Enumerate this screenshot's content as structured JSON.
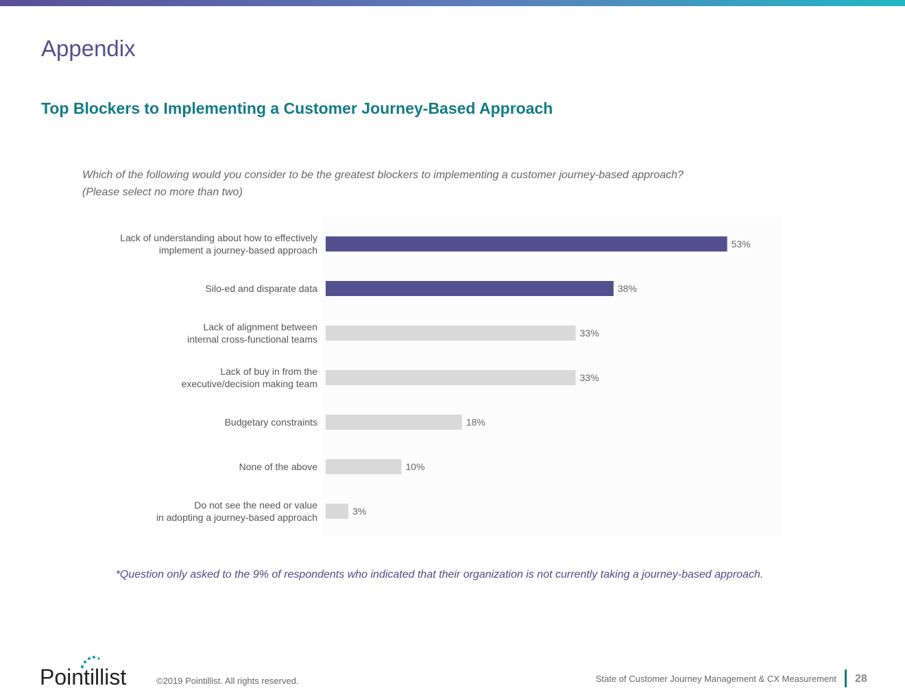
{
  "page": {
    "title": "Appendix",
    "section_title": "Top Blockers to Implementing a Customer Journey-Based Approach",
    "question_lines": [
      "Which of the following would you consider to be the greatest blockers to implementing a customer journey-based approach?",
      "(Please select no more than two)"
    ],
    "footnote": "*Question only asked to the 9% of respondents who indicated that their organization is not  currently taking a journey-based approach."
  },
  "chart_data": {
    "type": "bar",
    "orientation": "horizontal",
    "categories": [
      [
        "Lack of understanding about how to effectively",
        "implement a journey-based approach"
      ],
      [
        "Silo-ed and disparate data"
      ],
      [
        "Lack of alignment between",
        "internal cross-functional teams"
      ],
      [
        "Lack of buy in from the",
        "executive/decision making team"
      ],
      [
        "Budgetary constraints"
      ],
      [
        "None of the above"
      ],
      [
        "Do not see the need or value",
        "in adopting a journey-based approach"
      ]
    ],
    "values": [
      53,
      38,
      33,
      33,
      18,
      10,
      3
    ],
    "value_labels": [
      "53%",
      "38%",
      "33%",
      "33%",
      "18%",
      "10%",
      "3%"
    ],
    "highlighted": [
      true,
      true,
      false,
      false,
      false,
      false,
      false
    ],
    "xlim": [
      0,
      60
    ],
    "grid": false,
    "colors": {
      "highlight": "#544f8e",
      "default": "#d9d9d9",
      "panel": "#fcfcfc"
    }
  },
  "footer": {
    "logo_text": "Pointillist",
    "copyright": "©2019 Pointillist. All rights reserved.",
    "report_title": "State of Customer Journey Management & CX Measurement",
    "page_number": "28"
  },
  "colors": {
    "title": "#544f8e",
    "section_title": "#137b84",
    "accent_teal": "#21b6c4"
  }
}
